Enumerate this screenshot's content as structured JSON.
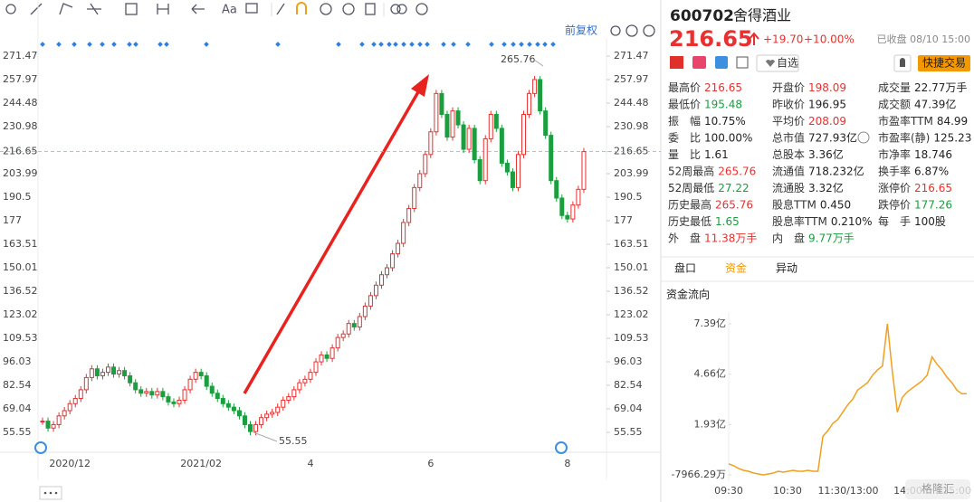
{
  "toolbar": {
    "font_button": "Aa",
    "adjust_button": "前复权"
  },
  "price_chart": {
    "type": "candlestick",
    "ylim": [
      55.55,
      271.47
    ],
    "yticks": [
      271.47,
      257.97,
      244.48,
      230.98,
      216.65,
      203.99,
      190.5,
      177.0,
      163.51,
      150.01,
      136.52,
      123.02,
      109.53,
      96.03,
      82.54,
      69.04,
      55.55
    ],
    "current_price": 216.65,
    "high_label": 265.76,
    "low_label": 55.55,
    "up_color": "#e93030",
    "down_color": "#1a9e3f",
    "categories": [
      null,
      null,
      null,
      null,
      null,
      "2020/12",
      null,
      null,
      null,
      null,
      null,
      null,
      null,
      null,
      null,
      null,
      null,
      null,
      null,
      null,
      null,
      null,
      null,
      null,
      null,
      null,
      null,
      null,
      null,
      "2021/02",
      null,
      null,
      null,
      null,
      null,
      null,
      null,
      null,
      null,
      null,
      null,
      null,
      null,
      null,
      null,
      null,
      null,
      null,
      null,
      "4",
      null,
      null,
      null,
      null,
      null,
      null,
      null,
      null,
      null,
      null,
      null,
      null,
      null,
      null,
      null,
      null,
      null,
      null,
      null,
      null,
      null,
      "6",
      null,
      null,
      null,
      null,
      null,
      null,
      null,
      null,
      null,
      null,
      null,
      null,
      null,
      null,
      null,
      null,
      null,
      null,
      null,
      null,
      null,
      null,
      null,
      null,
      "8",
      null,
      null,
      null
    ],
    "close": [
      62,
      58,
      60,
      65,
      68,
      72,
      75,
      80,
      87,
      92,
      88,
      90,
      93,
      89,
      91,
      88,
      84,
      80,
      78,
      79,
      77,
      79,
      76,
      73,
      72,
      74,
      80,
      86,
      90,
      88,
      82,
      78,
      75,
      72,
      70,
      68,
      65,
      60,
      56,
      60,
      64,
      66,
      67,
      70,
      74,
      76,
      80,
      84,
      86,
      90,
      96,
      100,
      98,
      104,
      110,
      112,
      118,
      116,
      122,
      128,
      134,
      140,
      146,
      150,
      158,
      164,
      176,
      184,
      196,
      204,
      215,
      228,
      250,
      238,
      225,
      240,
      232,
      218,
      230,
      212,
      200,
      224,
      238,
      230,
      210,
      205,
      196,
      215,
      238,
      250,
      258,
      240,
      226,
      200,
      190,
      180,
      178,
      186,
      195,
      216.65
    ]
  },
  "quote": {
    "code": "600702",
    "name": "舍得酒业",
    "price": 216.65,
    "change": "+19.70",
    "change_pct": "+10.00%",
    "status": "已收盘 08/10 15:00",
    "watch_button": "自选",
    "trade_button": "快捷交易"
  },
  "stats": [
    [
      {
        "label": "最高价",
        "value": "216.65",
        "color": "up"
      },
      {
        "label": "开盘价",
        "value": "198.09",
        "color": "up"
      },
      {
        "label": "成交量",
        "value": "22.77万手"
      }
    ],
    [
      {
        "label": "最低价",
        "value": "195.48",
        "color": "down"
      },
      {
        "label": "昨收价",
        "value": "196.95"
      },
      {
        "label": "成交额",
        "value": "47.39亿"
      }
    ],
    [
      {
        "label": "振　幅",
        "value": "10.75%"
      },
      {
        "label": "平均价",
        "value": "208.09",
        "color": "up"
      },
      {
        "label": "市盈率TTM",
        "value": "84.99"
      }
    ],
    [
      {
        "label": "委　比",
        "value": "100.00%"
      },
      {
        "label": "总市值",
        "value": "727.93亿"
      },
      {
        "label": "市盈率(静)",
        "value": "125.23"
      }
    ],
    [
      {
        "label": "量　比",
        "value": "1.61"
      },
      {
        "label": "总股本",
        "value": "3.36亿"
      },
      {
        "label": "市净率",
        "value": "18.746"
      }
    ],
    [
      {
        "label": "52周最高",
        "value": "265.76",
        "color": "up"
      },
      {
        "label": "流通值",
        "value": "718.232亿"
      },
      {
        "label": "换手率",
        "value": "6.87%"
      }
    ],
    [
      {
        "label": "52周最低",
        "value": "27.22",
        "color": "down"
      },
      {
        "label": "流通股",
        "value": "3.32亿"
      },
      {
        "label": "涨停价",
        "value": "216.65",
        "color": "up"
      }
    ],
    [
      {
        "label": "历史最高",
        "value": "265.76",
        "color": "up"
      },
      {
        "label": "股息TTM",
        "value": "0.450"
      },
      {
        "label": "跌停价",
        "value": "177.26",
        "color": "down"
      }
    ],
    [
      {
        "label": "历史最低",
        "value": "1.65",
        "color": "down"
      },
      {
        "label": "股息率TTM",
        "value": "0.210%"
      },
      {
        "label": "每　手",
        "value": "100股"
      }
    ],
    [
      {
        "label": "外　盘",
        "value": "11.38万手",
        "color": "up"
      },
      {
        "label": "内　盘",
        "value": "9.77万手",
        "color": "down"
      }
    ]
  ],
  "tabs": [
    "盘口",
    "资金",
    "异动"
  ],
  "fund_flow": {
    "title": "资金流向",
    "type": "line",
    "color": "#f0a020",
    "ylim": [
      -0.796629,
      7.39
    ],
    "yticks": [
      {
        "value": 7.39,
        "label": "7.39亿"
      },
      {
        "value": 4.66,
        "label": "4.66亿"
      },
      {
        "value": 1.93,
        "label": "1.93亿"
      },
      {
        "value": -0.796629,
        "label": "-7966.29万"
      }
    ],
    "xlabels": [
      "09:30",
      "10:30",
      "11:30/13:00",
      "14:00",
      "15:00"
    ],
    "values": [
      -0.2,
      -0.3,
      -0.45,
      -0.55,
      -0.6,
      -0.7,
      -0.75,
      -0.8,
      -0.75,
      -0.7,
      -0.6,
      -0.65,
      -0.6,
      -0.55,
      -0.6,
      -0.6,
      -0.55,
      -0.6,
      -0.6,
      1.3,
      1.6,
      2.0,
      2.2,
      2.6,
      3.0,
      3.3,
      3.8,
      4.0,
      4.2,
      4.6,
      4.9,
      5.1,
      7.39,
      4.8,
      2.6,
      3.4,
      3.7,
      3.9,
      4.1,
      4.3,
      4.6,
      5.6,
      5.2,
      4.9,
      4.5,
      4.2,
      3.8,
      3.6,
      3.6
    ]
  },
  "watermark": "格隆汇"
}
